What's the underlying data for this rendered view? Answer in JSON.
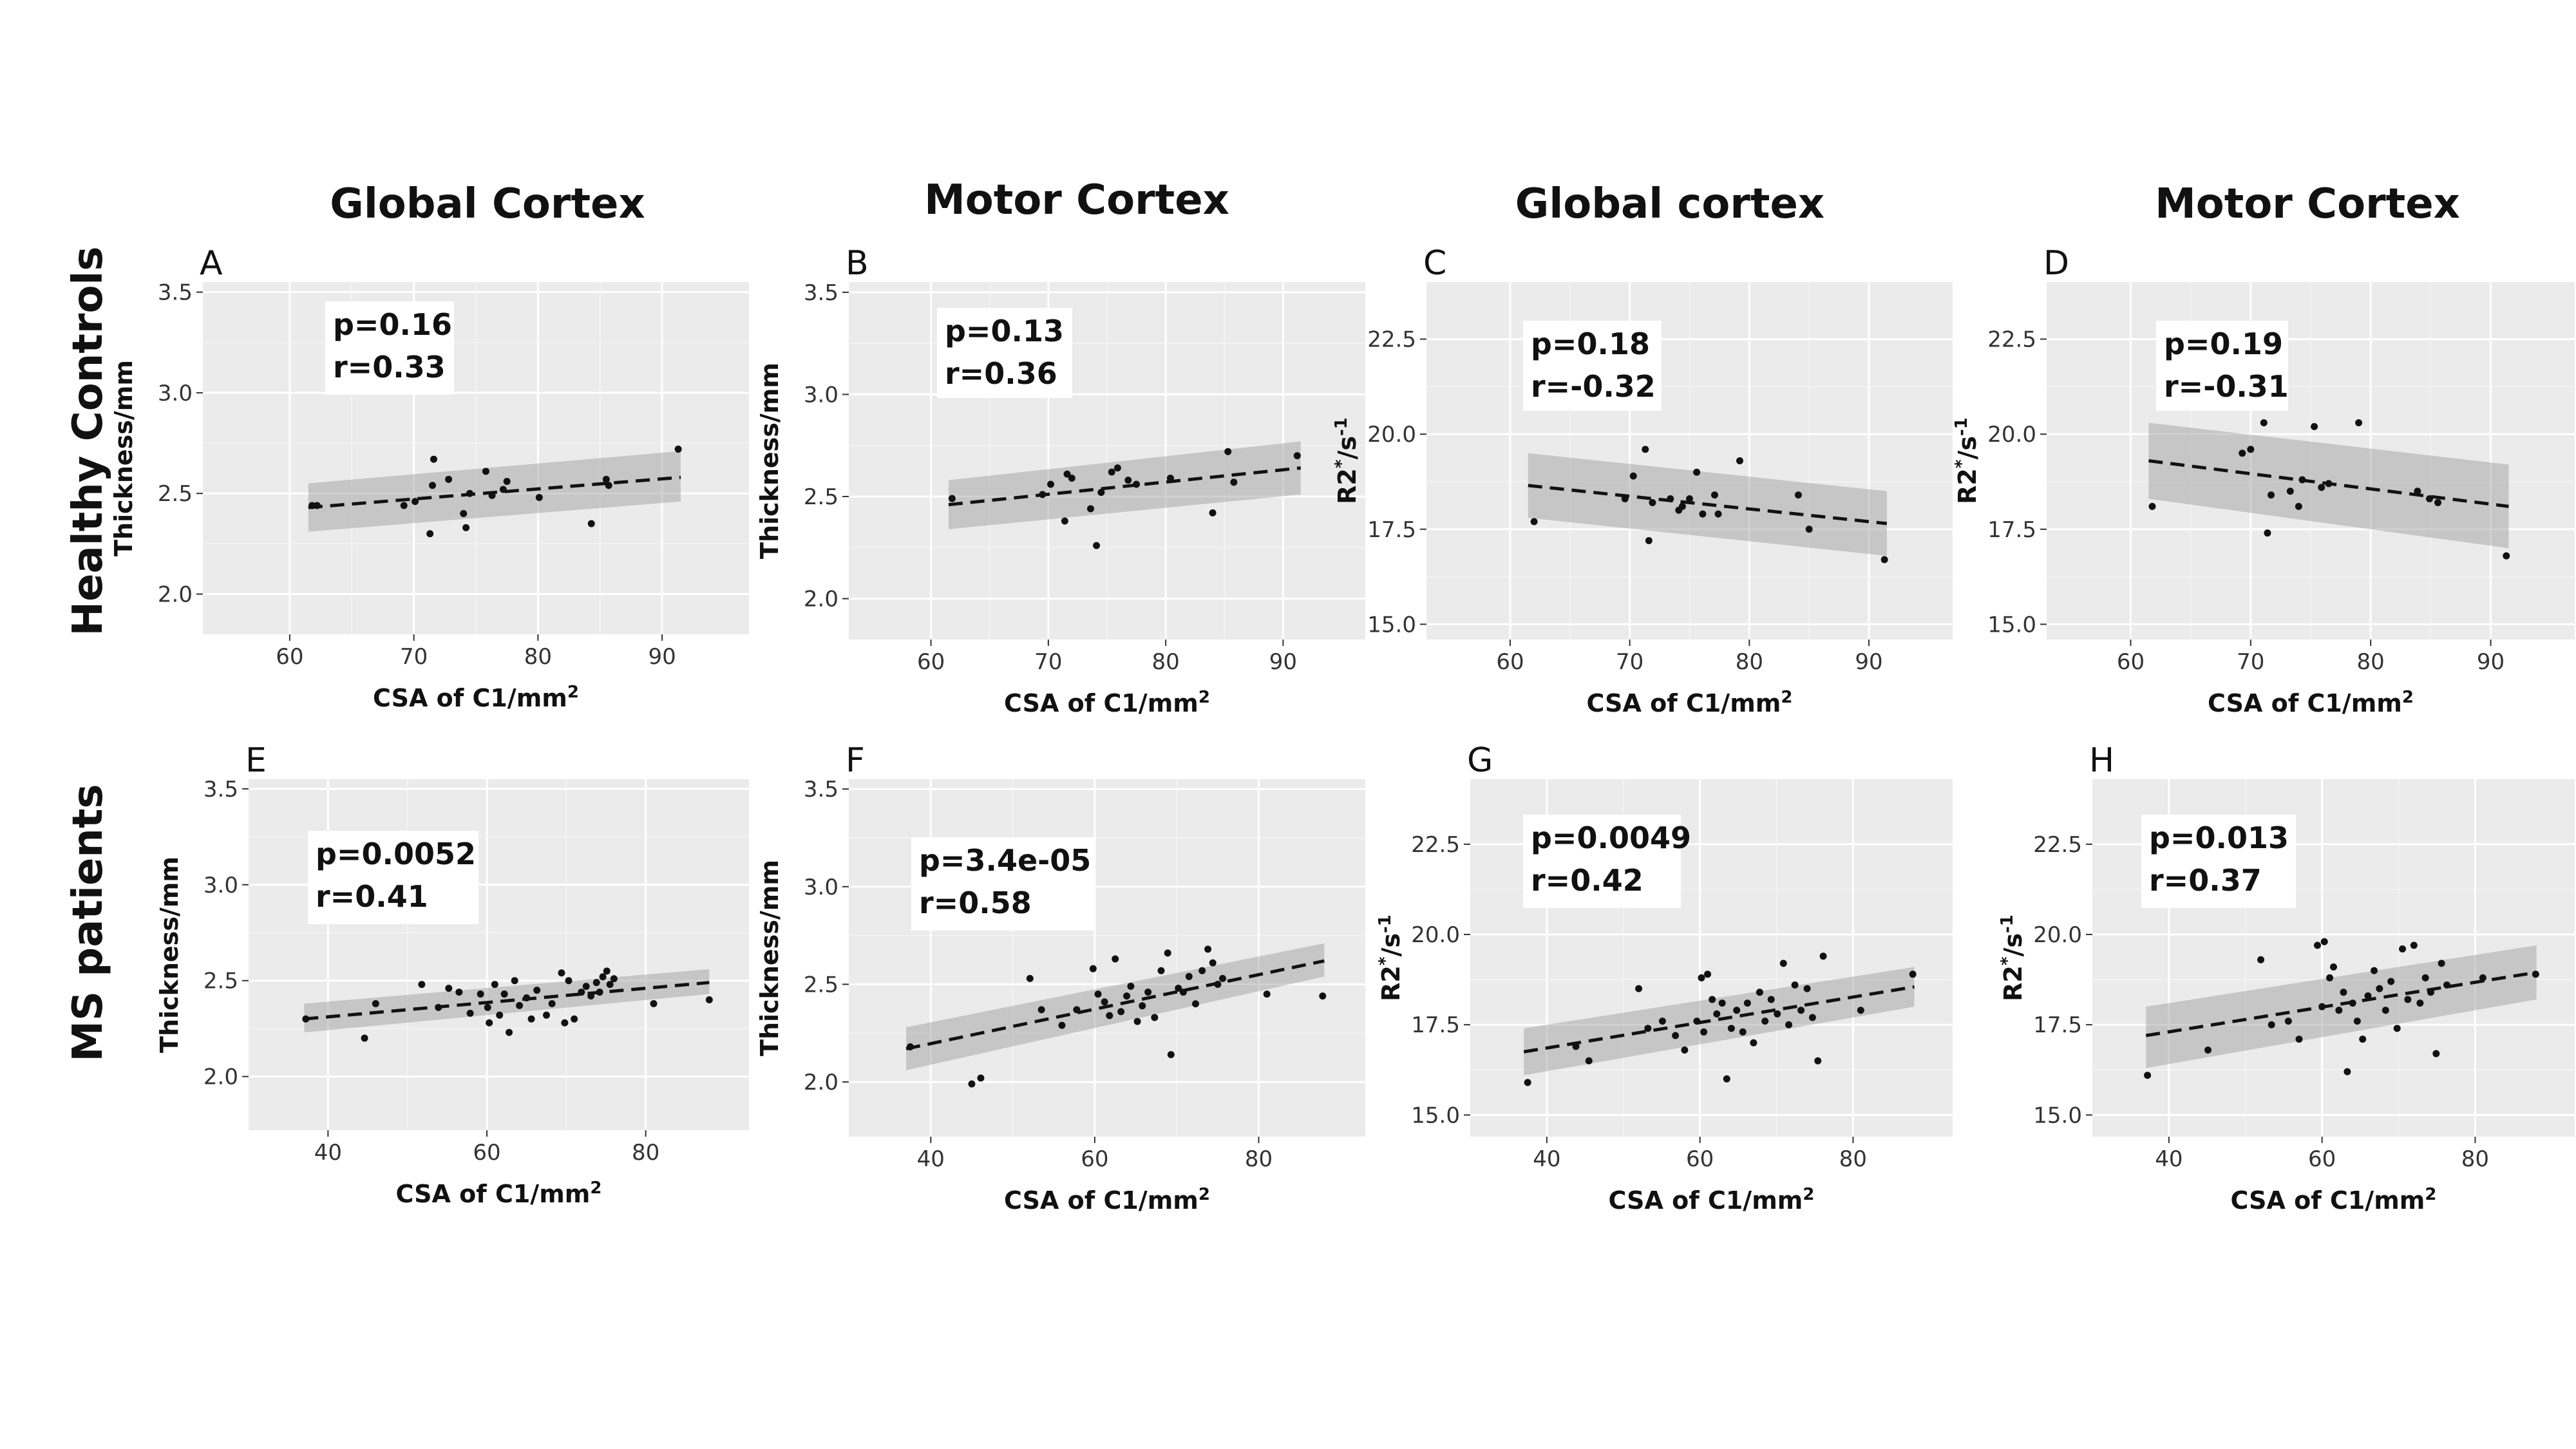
{
  "column_titles": [
    "Global Cortex",
    "Motor Cortex",
    "Global cortex",
    "Motor Cortex"
  ],
  "row_titles": [
    "Healthy Controls",
    "MS patients"
  ],
  "colors": {
    "panel_background": "#ebebeb",
    "grid": "#ffffff",
    "band": "#999999",
    "points": "#111111"
  },
  "chart_data": [
    {
      "id": "A",
      "type": "scatter",
      "xlabel": "CSA of C1/mm",
      "xlabel_sup": "2",
      "ylabel": "Thickness/mm",
      "ylabel_kind": "thickness",
      "annotation": [
        "p=0.16",
        "r=0.33"
      ],
      "xlim": [
        53,
        97
      ],
      "ylim": [
        1.8,
        3.55
      ],
      "xticks": [
        60,
        70,
        80,
        90
      ],
      "xtick_labels": [
        "60",
        "70",
        "80",
        "90"
      ],
      "yticks": [
        2.0,
        2.5,
        3.0,
        3.5
      ],
      "ytick_labels": [
        "2.0",
        "2.5",
        "3.0",
        "3.5"
      ],
      "fit": {
        "x": [
          61.5,
          91.5
        ],
        "y": [
          2.43,
          2.58
        ]
      },
      "ci_band": {
        "lower": [
          2.31,
          2.46
        ],
        "upper": [
          2.55,
          2.71
        ]
      },
      "x": [
        61.8,
        62.2,
        69.2,
        70.1,
        71.3,
        71.5,
        71.6,
        72.8,
        74.0,
        74.2,
        74.5,
        75.8,
        76.3,
        77.2,
        77.5,
        80.1,
        84.3,
        85.5,
        85.7,
        91.3
      ],
      "y": [
        2.44,
        2.44,
        2.44,
        2.46,
        2.3,
        2.54,
        2.67,
        2.57,
        2.4,
        2.33,
        2.5,
        2.61,
        2.49,
        2.52,
        2.56,
        2.48,
        2.35,
        2.57,
        2.54,
        2.72
      ]
    },
    {
      "id": "B",
      "type": "scatter",
      "xlabel": "CSA of C1/mm",
      "xlabel_sup": "2",
      "ylabel": "Thickness/mm",
      "ylabel_kind": "thickness",
      "annotation": [
        "p=0.13",
        "r=0.36"
      ],
      "xlim": [
        53,
        97
      ],
      "ylim": [
        1.8,
        3.55
      ],
      "xticks": [
        60,
        70,
        80,
        90
      ],
      "xtick_labels": [
        "60",
        "70",
        "80",
        "90"
      ],
      "yticks": [
        2.0,
        2.5,
        3.0,
        3.5
      ],
      "ytick_labels": [
        "2.0",
        "2.5",
        "3.0",
        "3.5"
      ],
      "fit": {
        "x": [
          61.5,
          91.5
        ],
        "y": [
          2.46,
          2.64
        ]
      },
      "ci_band": {
        "lower": [
          2.34,
          2.51
        ],
        "upper": [
          2.58,
          2.77
        ]
      },
      "x": [
        61.8,
        69.5,
        70.2,
        71.4,
        71.6,
        72.0,
        73.6,
        74.1,
        74.5,
        75.4,
        75.9,
        76.8,
        77.5,
        80.4,
        84.0,
        85.3,
        85.8,
        91.2
      ],
      "y": [
        2.49,
        2.51,
        2.56,
        2.38,
        2.61,
        2.59,
        2.44,
        2.26,
        2.52,
        2.62,
        2.64,
        2.58,
        2.56,
        2.59,
        2.42,
        2.72,
        2.57,
        2.7
      ]
    },
    {
      "id": "C",
      "type": "scatter",
      "xlabel": "CSA of C1/mm",
      "xlabel_sup": "2",
      "ylabel": "R2",
      "ylabel_kind": "r2",
      "annotation": [
        "p=0.18",
        "r=-0.32"
      ],
      "xlim": [
        53,
        97
      ],
      "ylim": [
        14.6,
        24.0
      ],
      "xticks": [
        60,
        70,
        80,
        90
      ],
      "xtick_labels": [
        "60",
        "70",
        "80",
        "90"
      ],
      "yticks": [
        15.0,
        17.5,
        20.0,
        22.5
      ],
      "ytick_labels": [
        "15.0",
        "17.5",
        "20.0",
        "22.5"
      ],
      "fit": {
        "x": [
          61.5,
          91.5
        ],
        "y": [
          18.65,
          17.65
        ]
      },
      "ci_band": {
        "lower": [
          17.8,
          16.8
        ],
        "upper": [
          19.5,
          18.5
        ]
      },
      "x": [
        62.0,
        69.6,
        70.3,
        71.3,
        71.6,
        71.9,
        73.4,
        74.1,
        74.4,
        75.0,
        75.6,
        76.1,
        77.1,
        77.4,
        79.2,
        84.1,
        85.0,
        91.3
      ],
      "y": [
        17.7,
        18.3,
        18.9,
        19.6,
        17.2,
        18.2,
        18.3,
        18.0,
        18.1,
        18.3,
        19.0,
        17.9,
        18.4,
        17.9,
        19.3,
        18.4,
        17.5,
        16.7
      ]
    },
    {
      "id": "D",
      "type": "scatter",
      "xlabel": "CSA of C1/mm",
      "xlabel_sup": "2",
      "ylabel": "R2",
      "ylabel_kind": "r2",
      "annotation": [
        "p=0.19",
        "r=-0.31"
      ],
      "xlim": [
        53,
        97
      ],
      "ylim": [
        14.6,
        24.0
      ],
      "xticks": [
        60,
        70,
        80,
        90
      ],
      "xtick_labels": [
        "60",
        "70",
        "80",
        "90"
      ],
      "yticks": [
        15.0,
        17.5,
        20.0,
        22.5
      ],
      "ytick_labels": [
        "15.0",
        "17.5",
        "20.0",
        "22.5"
      ],
      "fit": {
        "x": [
          61.5,
          91.5
        ],
        "y": [
          19.3,
          18.1
        ]
      },
      "ci_band": {
        "lower": [
          18.3,
          17.0
        ],
        "upper": [
          20.3,
          19.2
        ]
      },
      "x": [
        61.8,
        69.3,
        70.0,
        71.1,
        71.4,
        71.7,
        73.3,
        74.0,
        74.3,
        75.3,
        75.9,
        76.5,
        79.0,
        83.9,
        84.9,
        85.6,
        91.3
      ],
      "y": [
        18.1,
        19.5,
        19.6,
        20.3,
        17.4,
        18.4,
        18.5,
        18.1,
        18.8,
        20.2,
        18.6,
        18.7,
        20.3,
        18.5,
        18.3,
        18.2,
        16.8
      ]
    },
    {
      "id": "E",
      "type": "scatter",
      "xlabel": "CSA of C1/mm",
      "xlabel_sup": "2",
      "ylabel": "Thickness/mm",
      "ylabel_kind": "thickness",
      "annotation": [
        "p=0.0052",
        "r=0.41"
      ],
      "xlim": [
        30,
        93
      ],
      "ylim": [
        1.72,
        3.55
      ],
      "xticks": [
        40,
        60,
        80
      ],
      "xtick_labels": [
        "40",
        "60",
        "80"
      ],
      "yticks": [
        2.0,
        2.5,
        3.0,
        3.5
      ],
      "ytick_labels": [
        "2.0",
        "2.5",
        "3.0",
        "3.5"
      ],
      "fit": {
        "x": [
          37,
          88
        ],
        "y": [
          2.3,
          2.49
        ]
      },
      "ci_band": {
        "lower": [
          2.23,
          2.43
        ],
        "upper": [
          2.38,
          2.56
        ]
      },
      "x": [
        37.2,
        44.6,
        46.0,
        51.8,
        53.9,
        55.2,
        56.5,
        57.9,
        59.2,
        60.1,
        60.3,
        61.0,
        61.6,
        62.2,
        62.8,
        63.5,
        64.1,
        65.0,
        65.6,
        66.3,
        67.5,
        68.2,
        69.4,
        69.8,
        70.3,
        71.0,
        71.9,
        72.5,
        73.1,
        73.8,
        74.2,
        74.6,
        75.1,
        75.5,
        76.0,
        81.0,
        88.0
      ],
      "y": [
        2.3,
        2.2,
        2.38,
        2.48,
        2.36,
        2.46,
        2.44,
        2.33,
        2.43,
        2.36,
        2.28,
        2.48,
        2.32,
        2.43,
        2.23,
        2.5,
        2.37,
        2.41,
        2.3,
        2.45,
        2.32,
        2.38,
        2.54,
        2.28,
        2.5,
        2.3,
        2.44,
        2.47,
        2.42,
        2.49,
        2.44,
        2.52,
        2.55,
        2.48,
        2.51,
        2.38,
        2.4
      ]
    },
    {
      "id": "F",
      "type": "scatter",
      "xlabel": "CSA of C1/mm",
      "xlabel_sup": "2",
      "ylabel": "Thickness/mm",
      "ylabel_kind": "thickness",
      "annotation": [
        "p=3.4e-05",
        "r=0.58"
      ],
      "xlim": [
        30,
        93
      ],
      "ylim": [
        1.72,
        3.55
      ],
      "xticks": [
        40,
        60,
        80
      ],
      "xtick_labels": [
        "40",
        "60",
        "80"
      ],
      "yticks": [
        2.0,
        2.5,
        3.0,
        3.5
      ],
      "ytick_labels": [
        "2.0",
        "2.5",
        "3.0",
        "3.5"
      ],
      "fit": {
        "x": [
          37,
          88
        ],
        "y": [
          2.17,
          2.62
        ]
      },
      "ci_band": {
        "lower": [
          2.06,
          2.54
        ],
        "upper": [
          2.28,
          2.71
        ]
      },
      "x": [
        37.5,
        45.0,
        46.1,
        52.1,
        53.5,
        56.0,
        57.8,
        59.8,
        60.4,
        61.2,
        61.8,
        62.5,
        63.2,
        63.9,
        64.4,
        65.2,
        65.8,
        66.5,
        67.3,
        68.1,
        68.9,
        69.3,
        70.2,
        70.8,
        71.5,
        72.3,
        73.1,
        73.8,
        74.4,
        75.0,
        75.6,
        81.0,
        87.8
      ],
      "y": [
        2.18,
        1.99,
        2.02,
        2.53,
        2.37,
        2.29,
        2.37,
        2.58,
        2.45,
        2.41,
        2.34,
        2.63,
        2.36,
        2.44,
        2.49,
        2.31,
        2.39,
        2.46,
        2.33,
        2.57,
        2.66,
        2.14,
        2.48,
        2.46,
        2.54,
        2.4,
        2.57,
        2.68,
        2.61,
        2.5,
        2.53,
        2.45,
        2.44
      ]
    },
    {
      "id": "G",
      "type": "scatter",
      "xlabel": "CSA of C1/mm",
      "xlabel_sup": "2",
      "ylabel": "R2",
      "ylabel_kind": "r2",
      "annotation": [
        "p=0.0049",
        "r=0.42"
      ],
      "xlim": [
        30,
        93
      ],
      "ylim": [
        14.4,
        24.3
      ],
      "xticks": [
        40,
        60,
        80
      ],
      "xtick_labels": [
        "40",
        "60",
        "80"
      ],
      "yticks": [
        15.0,
        17.5,
        20.0,
        22.5
      ],
      "ytick_labels": [
        "15.0",
        "17.5",
        "20.0",
        "22.5"
      ],
      "fit": {
        "x": [
          37,
          88
        ],
        "y": [
          16.75,
          18.55
        ]
      },
      "ci_band": {
        "lower": [
          16.1,
          18.0
        ],
        "upper": [
          17.4,
          19.1
        ]
      },
      "x": [
        37.5,
        43.8,
        45.5,
        52.0,
        53.2,
        55.1,
        56.8,
        58.0,
        59.6,
        60.2,
        60.5,
        61.0,
        61.6,
        62.2,
        62.9,
        63.5,
        64.1,
        64.8,
        65.6,
        66.2,
        67.0,
        67.8,
        68.5,
        69.3,
        70.1,
        70.9,
        71.6,
        72.4,
        73.2,
        74.0,
        74.7,
        75.4,
        76.1,
        81.0,
        87.8
      ],
      "y": [
        15.9,
        16.9,
        16.5,
        18.5,
        17.4,
        17.6,
        17.2,
        16.8,
        17.6,
        18.8,
        17.3,
        18.9,
        18.2,
        17.8,
        18.1,
        16.0,
        17.4,
        17.9,
        17.3,
        18.1,
        17.0,
        18.4,
        17.6,
        18.2,
        17.8,
        19.2,
        17.5,
        18.6,
        17.9,
        18.5,
        17.7,
        16.5,
        19.4,
        17.9,
        18.9
      ]
    },
    {
      "id": "H",
      "type": "scatter",
      "xlabel": "CSA of C1/mm",
      "xlabel_sup": "2",
      "ylabel": "R2",
      "ylabel_kind": "r2",
      "annotation": [
        "p=0.013",
        "r=0.37"
      ],
      "xlim": [
        30,
        93
      ],
      "ylim": [
        14.4,
        24.3
      ],
      "xticks": [
        40,
        60,
        80
      ],
      "xtick_labels": [
        "40",
        "60",
        "80"
      ],
      "yticks": [
        15.0,
        17.5,
        20.0,
        22.5
      ],
      "ytick_labels": [
        "15.0",
        "17.5",
        "20.0",
        "22.5"
      ],
      "fit": {
        "x": [
          37,
          88
        ],
        "y": [
          17.2,
          18.95
        ]
      },
      "ci_band": {
        "lower": [
          16.3,
          18.2
        ],
        "upper": [
          18.0,
          19.7
        ]
      },
      "x": [
        37.2,
        45.1,
        52.0,
        53.4,
        55.6,
        57.0,
        59.4,
        60.0,
        60.3,
        61.0,
        61.5,
        62.2,
        62.8,
        63.3,
        64.0,
        64.6,
        65.3,
        66.0,
        66.8,
        67.5,
        68.3,
        69.0,
        69.8,
        70.5,
        71.2,
        72.0,
        72.8,
        73.5,
        74.2,
        74.9,
        75.6,
        76.3,
        81.0,
        87.9
      ],
      "y": [
        16.1,
        16.8,
        19.3,
        17.5,
        17.6,
        17.1,
        19.7,
        18.0,
        19.8,
        18.8,
        19.1,
        17.9,
        18.4,
        16.2,
        18.1,
        17.6,
        17.1,
        18.3,
        19.0,
        18.5,
        17.9,
        18.7,
        17.4,
        19.6,
        18.2,
        19.7,
        18.1,
        18.8,
        18.4,
        16.7,
        19.2,
        18.6,
        18.8,
        18.9
      ]
    }
  ]
}
